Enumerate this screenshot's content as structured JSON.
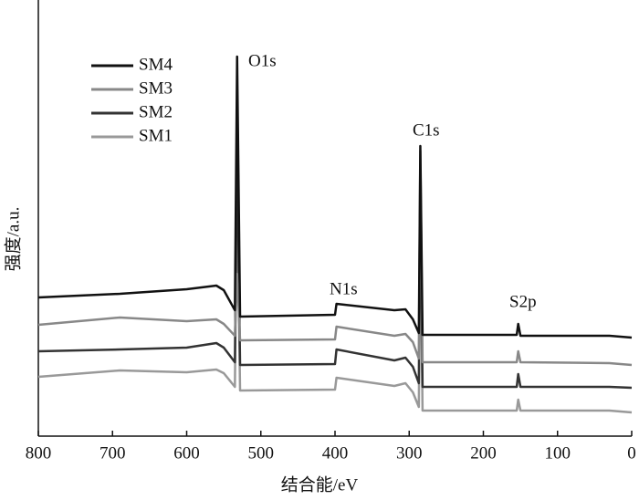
{
  "chart_data": {
    "type": "line",
    "x_label": "结合能/eV",
    "y_label": "强度/a.u.",
    "x": [
      800,
      690,
      600,
      560,
      550,
      535,
      532,
      528,
      400,
      398,
      320,
      305,
      295,
      287,
      285,
      282,
      155,
      153,
      150,
      30,
      0
    ],
    "xlim": [
      800,
      0
    ],
    "xticks": [
      800,
      700,
      600,
      500,
      400,
      300,
      200,
      100,
      0
    ],
    "ylim": [
      0,
      478
    ],
    "yticks": [],
    "grid": false,
    "legend": "upper left",
    "series": [
      {
        "name": "SM4",
        "color": "#111111",
        "values": [
          152,
          156,
          161,
          165,
          160,
          138,
          416,
          131,
          133,
          145,
          138,
          139,
          128,
          113,
          318,
          111,
          111,
          123,
          110,
          110,
          108
        ]
      },
      {
        "name": "SM3",
        "color": "#888888",
        "values": [
          122,
          130,
          126,
          128,
          123,
          110,
          178,
          105,
          106,
          120,
          110,
          112,
          103,
          85,
          313,
          81,
          81,
          93,
          81,
          80,
          78
        ]
      },
      {
        "name": "SM2",
        "color": "#333333",
        "values": [
          93,
          95,
          97,
          102,
          97,
          81,
          328,
          78,
          79,
          95,
          83,
          86,
          76,
          58,
          278,
          54,
          54,
          68,
          54,
          54,
          53
        ]
      },
      {
        "name": "SM1",
        "color": "#999999",
        "values": [
          65,
          72,
          70,
          73,
          69,
          54,
          278,
          50,
          51,
          64,
          55,
          58,
          48,
          32,
          248,
          28,
          28,
          40,
          28,
          28,
          26
        ]
      }
    ],
    "annotations": [
      "O1s",
      "C1s",
      "N1s",
      "S2p"
    ]
  }
}
